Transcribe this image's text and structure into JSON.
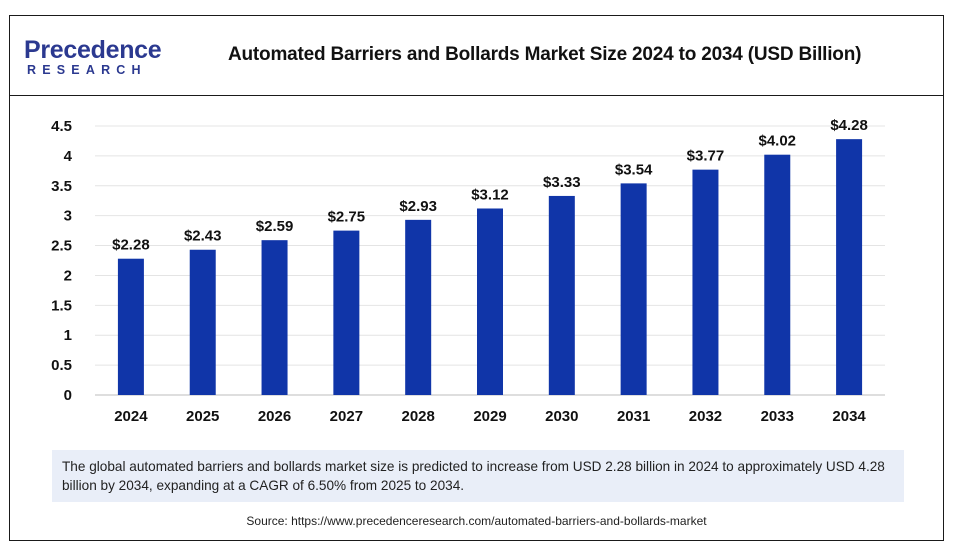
{
  "header": {
    "logo_main": "Precedence",
    "logo_sub": "RESEARCH",
    "title": "Automated Barriers and Bollards Market Size 2024 to 2034 (USD Billion)"
  },
  "colors": {
    "bar": "#1035a8",
    "logo": "#2b3990",
    "summary_bg": "#e9eef8"
  },
  "chart_data": {
    "type": "bar",
    "title": "Automated Barriers and Bollards Market Size 2024 to 2034 (USD Billion)",
    "categories": [
      "2024",
      "2025",
      "2026",
      "2027",
      "2028",
      "2029",
      "2030",
      "2031",
      "2032",
      "2033",
      "2034"
    ],
    "values": [
      2.28,
      2.43,
      2.59,
      2.75,
      2.93,
      3.12,
      3.33,
      3.54,
      3.77,
      4.02,
      4.28
    ],
    "data_labels": [
      "$2.28",
      "$2.43",
      "$2.59",
      "$2.75",
      "$2.93",
      "$3.12",
      "$3.33",
      "$3.54",
      "$3.77",
      "$4.02",
      "$4.28"
    ],
    "y_ticks": [
      "0",
      "0.5",
      "1",
      "1.5",
      "2",
      "2.5",
      "3",
      "3.5",
      "4",
      "4.5"
    ],
    "ylim": [
      0,
      4.5
    ],
    "xlabel": "",
    "ylabel": "",
    "grid": true,
    "legend": "none"
  },
  "summary": "The global automated barriers and bollards market size is predicted to increase from USD 2.28 billion in 2024 to approximately USD 4.28 billion by 2034, expanding at a CAGR of 6.50% from 2025 to 2034.",
  "source": "Source: https://www.precedenceresearch.com/automated-barriers-and-bollards-market"
}
